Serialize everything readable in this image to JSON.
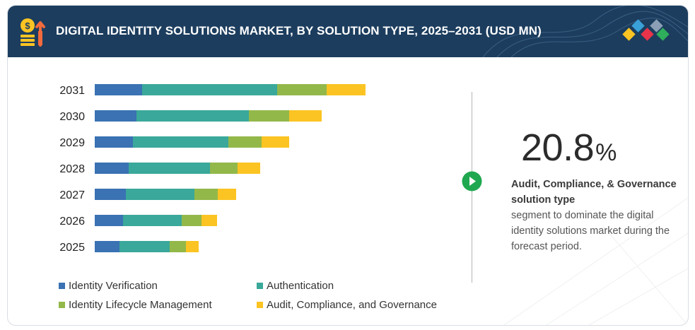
{
  "header": {
    "title": "DIGITAL IDENTITY SOLUTIONS MARKET, BY SOLUTION TYPE, 2025–2031 (USD MN)"
  },
  "chart_data": {
    "type": "bar",
    "orientation": "horizontal",
    "stacked": true,
    "categories": [
      "2031",
      "2030",
      "2029",
      "2028",
      "2027",
      "2026",
      "2025"
    ],
    "series": [
      {
        "name": "Identity Verification",
        "color": "#3a72b3",
        "values": [
          67,
          59,
          54,
          48,
          44,
          40,
          35
        ]
      },
      {
        "name": "Authentication",
        "color": "#3aa89a",
        "values": [
          191,
          159,
          135,
          115,
          97,
          83,
          71
        ]
      },
      {
        "name": "Identity Lifecycle Management",
        "color": "#93b84a",
        "values": [
          70,
          57,
          47,
          39,
          33,
          28,
          23
        ]
      },
      {
        "name": "Audit, Compliance, and Governance",
        "color": "#fbc423",
        "values": [
          55,
          46,
          39,
          32,
          26,
          22,
          18
        ]
      }
    ],
    "xlim": [
      0,
      400
    ],
    "grid": false,
    "legend_position": "bottom-left"
  },
  "highlight": {
    "value": "20.8",
    "unit": "%",
    "bold_text": "Audit, Compliance, & Governance solution type",
    "text": "segment to dominate the digital identity solutions market during the forecast period."
  },
  "logo": {
    "colors": [
      "#fbc423",
      "#3aa0d8",
      "#e8334a",
      "#2fae5c",
      "#8a9fb5"
    ]
  }
}
